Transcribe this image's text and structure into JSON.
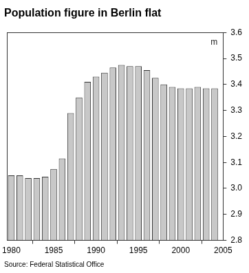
{
  "chart_data": {
    "type": "bar",
    "title": "Population figure in Berlin flat",
    "ylabel": "m",
    "source": "Source: Federal Statistical Office",
    "x": [
      1980,
      1981,
      1982,
      1983,
      1984,
      1985,
      1986,
      1987,
      1988,
      1989,
      1990,
      1991,
      1992,
      1993,
      1994,
      1995,
      1996,
      1997,
      1998,
      1999,
      2000,
      2001,
      2002,
      2003,
      2004
    ],
    "values": [
      3.05,
      3.05,
      3.04,
      3.04,
      3.045,
      3.075,
      3.115,
      3.29,
      3.35,
      3.41,
      3.43,
      3.445,
      3.465,
      3.475,
      3.47,
      3.47,
      3.455,
      3.425,
      3.4,
      3.39,
      3.385,
      3.385,
      3.39,
      3.385,
      3.385
    ],
    "color": "#c8c8c8",
    "xlim": [
      1979.5,
      2005
    ],
    "xticks": [
      1980,
      1985,
      1990,
      1995,
      2000,
      2005
    ],
    "ylim": [
      2.8,
      3.6
    ],
    "yticks": [
      2.8,
      2.9,
      {
        "value": 3,
        "label": "3.0"
      },
      3.1,
      3.2,
      3.3,
      3.4,
      3.5,
      3.6
    ],
    "grid": false
  }
}
